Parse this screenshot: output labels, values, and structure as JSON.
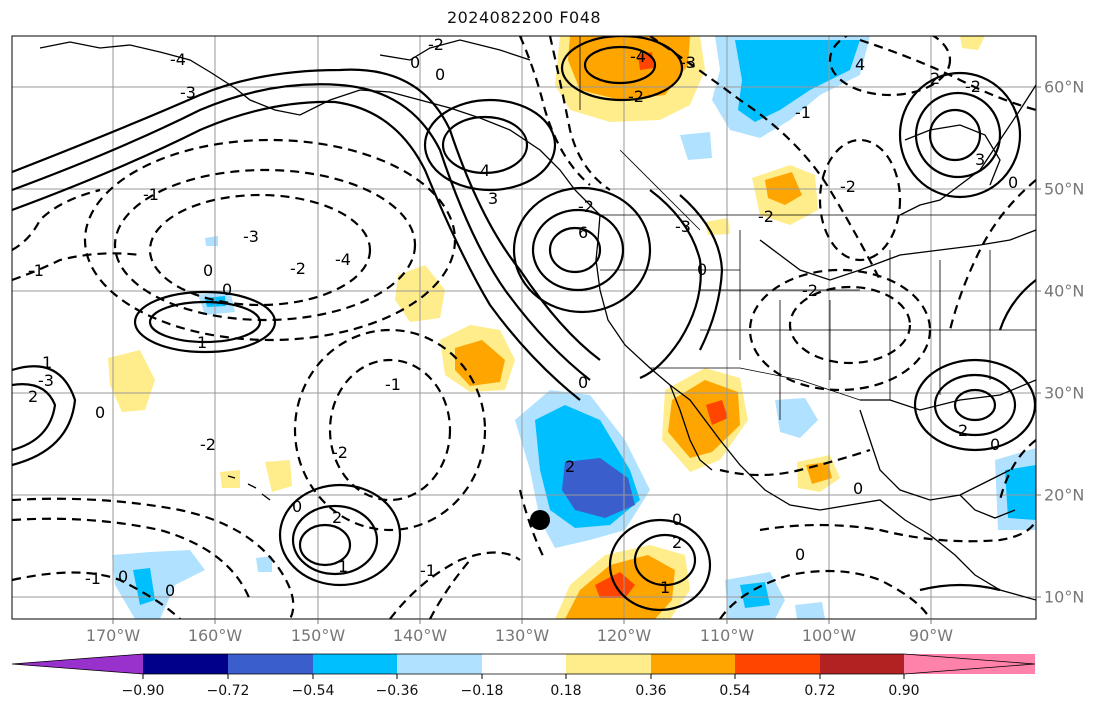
{
  "title": "2024082200 F048",
  "longitude_labels": [
    "170°W",
    "160°W",
    "150°W",
    "140°W",
    "130°W",
    "120°W",
    "110°W",
    "100°W",
    "90°W"
  ],
  "latitude_labels": [
    "60°N",
    "50°N",
    "40°N",
    "30°N",
    "20°N",
    "10°N"
  ],
  "colorbar": {
    "tick_labels": [
      "−0.90",
      "−0.72",
      "−0.54",
      "−0.36",
      "−0.18",
      "0.18",
      "0.36",
      "0.54",
      "0.72",
      "0.90"
    ],
    "colors": [
      "#9932cc",
      "#00008b",
      "#3a5fcd",
      "#00bfff",
      "#b0e2ff",
      "#ffffff",
      "#ffec8b",
      "#ffa500",
      "#ff4500",
      "#b22222",
      "#ff82ab"
    ]
  },
  "contour_labels": [
    "-2",
    "0",
    "-4",
    "-3",
    "0",
    "-4",
    "-3",
    "-2",
    "4",
    "-2",
    "2",
    "-1",
    "4",
    "3",
    "6",
    "-3",
    "-2",
    "-4",
    "0",
    "0",
    "-1",
    "1",
    "1",
    "-3",
    "2",
    "-1",
    "0",
    "-2",
    "0",
    "2",
    "-1",
    "-2",
    "0",
    "1",
    "2",
    "-3",
    "0",
    "-1",
    "0",
    "2",
    "3",
    "-2",
    "0",
    "1",
    "0",
    "-2",
    "0",
    "-1",
    "0",
    "0",
    "-2",
    "-2",
    "2",
    "0"
  ],
  "markers": [
    {
      "name": "black-dot"
    }
  ]
}
